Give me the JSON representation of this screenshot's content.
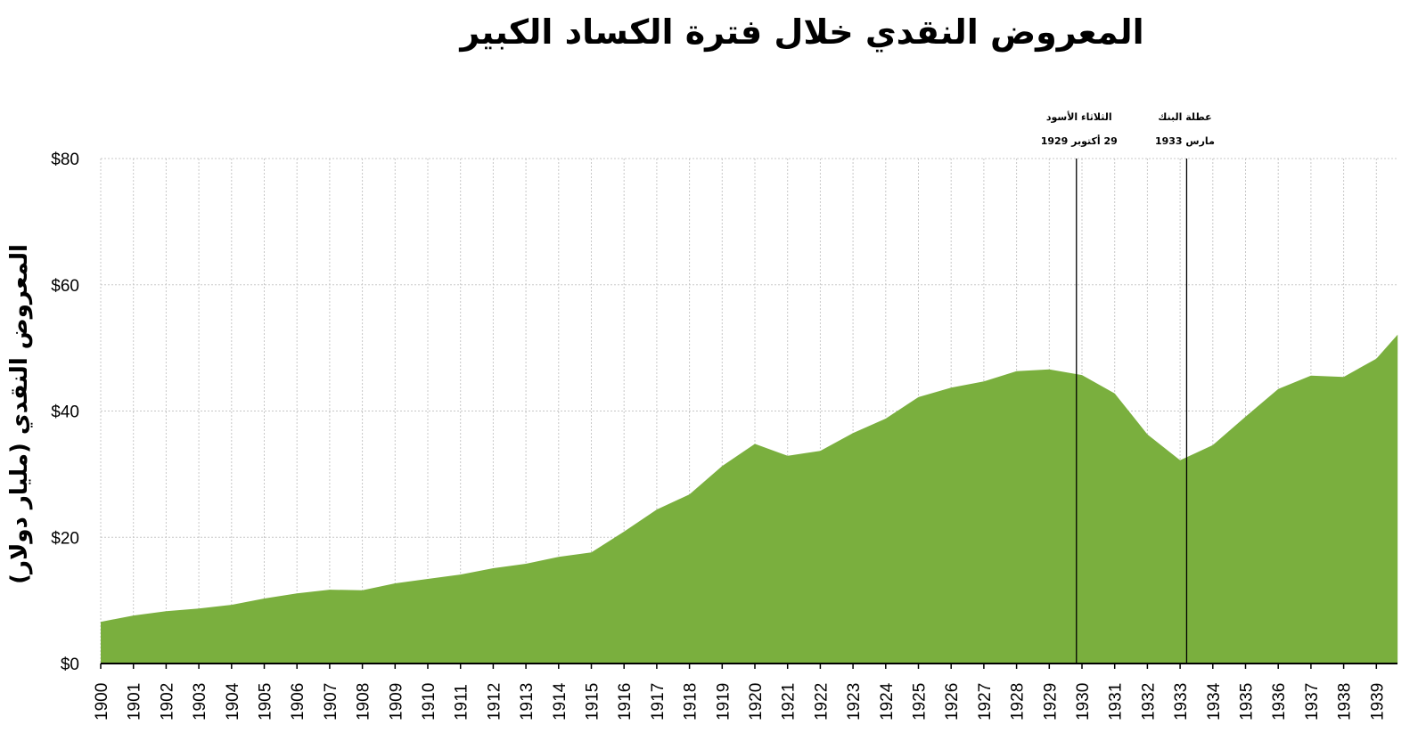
{
  "chart_data": {
    "type": "area",
    "title": "المعروض النقدي خلال فترة الكساد الكبير",
    "xlabel": "",
    "ylabel": "المعروض النقدي (مليار دولار)",
    "xlim": [
      1900,
      1939.65
    ],
    "ylim": [
      0,
      80
    ],
    "grid": true,
    "color": "#7aaf3e",
    "y_ticks": [
      {
        "v": 0,
        "label": "$0"
      },
      {
        "v": 20,
        "label": "$20"
      },
      {
        "v": 40,
        "label": "$40"
      },
      {
        "v": 60,
        "label": "$60"
      },
      {
        "v": 80,
        "label": "$80"
      }
    ],
    "x": [
      1900,
      1901,
      1902,
      1903,
      1904,
      1905,
      1906,
      1907,
      1908,
      1909,
      1910,
      1911,
      1912,
      1913,
      1914,
      1915,
      1916,
      1917,
      1918,
      1919,
      1920,
      1921,
      1922,
      1923,
      1924,
      1925,
      1926,
      1927,
      1928,
      1929,
      1930,
      1931,
      1932,
      1933,
      1934,
      1935,
      1936,
      1937,
      1938,
      1939,
      1939.65
    ],
    "values": [
      6.6,
      7.6,
      8.3,
      8.7,
      9.3,
      10.3,
      11.1,
      11.7,
      11.6,
      12.7,
      13.4,
      14.1,
      15.1,
      15.8,
      16.9,
      17.6,
      20.9,
      24.4,
      26.8,
      31.3,
      34.8,
      32.9,
      33.7,
      36.5,
      38.8,
      42.2,
      43.7,
      44.7,
      46.3,
      46.6,
      45.7,
      42.8,
      36.3,
      32.2,
      34.6,
      39.1,
      43.5,
      45.6,
      45.4,
      48.3,
      52.1
    ],
    "annotations": [
      {
        "x": 1929.83,
        "line1": "الثلاثاء الأسود",
        "line2": "29 أكتوبر 1929"
      },
      {
        "x": 1933.2,
        "line1": "عطلة البنك",
        "line2": "مارس 1933"
      }
    ]
  }
}
